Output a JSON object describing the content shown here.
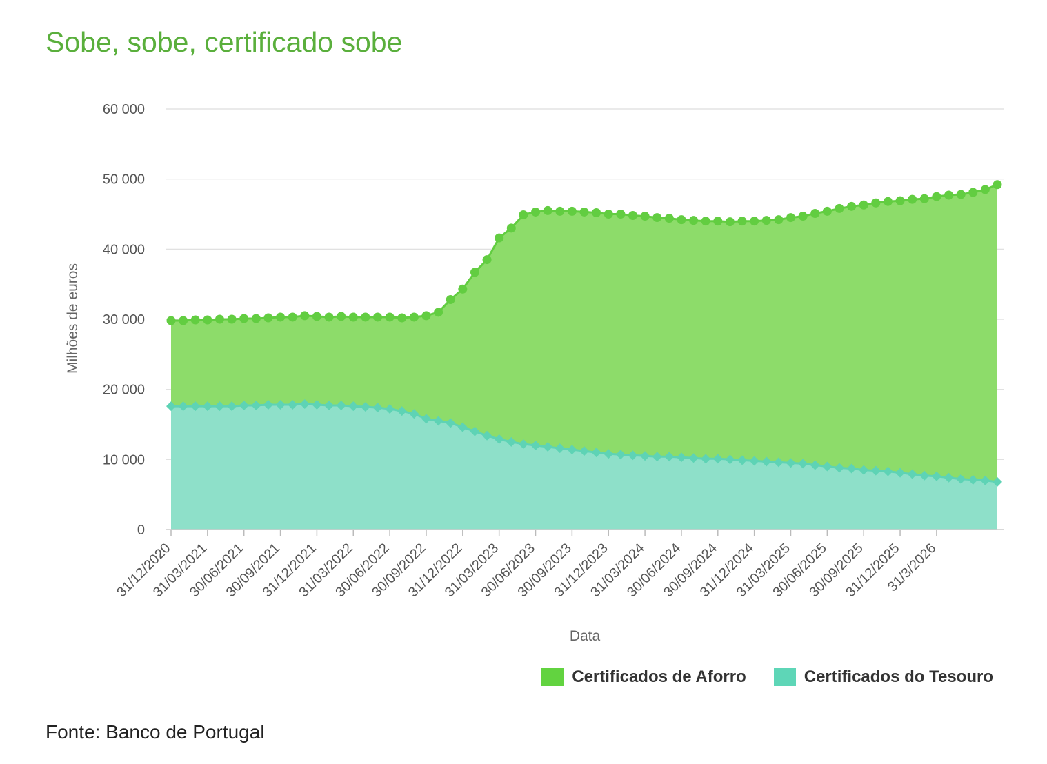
{
  "title": "Sobe, sobe, certificado sobe",
  "source": "Fonte: Banco de Portugal",
  "colors": {
    "title": "#5aaf3c",
    "aforro_area": "#8ddc6a",
    "aforro_line": "#62cd41",
    "tesouro_area": "#8ee0c9",
    "tesouro_line": "#5ed3b5",
    "grid": "#dddddd"
  },
  "legend": [
    {
      "label": "Certificados de Aforro",
      "color": "#62d340"
    },
    {
      "label": "Certificados do Tesouro",
      "color": "#5ed6b7"
    }
  ],
  "chart_data": {
    "type": "area",
    "stacked": true,
    "title": "Sobe, sobe, certificado sobe",
    "xlabel": "Data",
    "ylabel": "Milhões de euros",
    "ylim": [
      0,
      60000
    ],
    "yticks": [
      0,
      10000,
      20000,
      30000,
      40000,
      50000,
      60000
    ],
    "ytick_labels": [
      "0",
      "10 000",
      "20 000",
      "30 000",
      "40 000",
      "50 000",
      "60 000"
    ],
    "xtick_labels": [
      "31/12/2020",
      "31/03/2021",
      "30/06/2021",
      "30/09/2021",
      "31/12/2021",
      "31/03/2022",
      "30/06/2022",
      "30/09/2022",
      "31/12/2022",
      "31/03/2023",
      "30/06/2023",
      "30/09/2023",
      "31/12/2023",
      "31/03/2024",
      "30/06/2024",
      "30/09/2024",
      "31/12/2024",
      "31/03/2025",
      "30/06/2025",
      "30/09/2025",
      "31/12/2025",
      "31/3/2026"
    ],
    "x_periods": "monthly, December 2020 to May 2026",
    "grid": true,
    "legend_position": "bottom-right",
    "series": [
      {
        "name": "Certificados de Aforro",
        "values": [
          12200,
          12200,
          12300,
          12300,
          12400,
          12400,
          12400,
          12400,
          12400,
          12500,
          12500,
          12600,
          12600,
          12600,
          12700,
          12700,
          12800,
          12900,
          13100,
          13300,
          13800,
          14700,
          15500,
          17600,
          19700,
          22700,
          25100,
          28700,
          30500,
          32700,
          33300,
          33700,
          33800,
          34000,
          34100,
          34200,
          34200,
          34300,
          34200,
          34200,
          34100,
          34000,
          33900,
          33900,
          33900,
          33900,
          33900,
          34100,
          34200,
          34400,
          34600,
          35000,
          35300,
          35900,
          36400,
          37000,
          37400,
          37800,
          38200,
          38500,
          38800,
          39200,
          39500,
          39900,
          40300,
          40600,
          41000,
          41500,
          42400
        ]
      },
      {
        "name": "Certificados do Tesouro",
        "values": [
          17600,
          17600,
          17600,
          17600,
          17600,
          17600,
          17700,
          17700,
          17800,
          17800,
          17800,
          17900,
          17800,
          17700,
          17700,
          17600,
          17500,
          17400,
          17200,
          16900,
          16500,
          15800,
          15500,
          15200,
          14600,
          14000,
          13400,
          12900,
          12500,
          12200,
          12000,
          11800,
          11600,
          11400,
          11200,
          11000,
          10800,
          10700,
          10600,
          10500,
          10400,
          10400,
          10300,
          10200,
          10100,
          10100,
          10000,
          9900,
          9800,
          9700,
          9600,
          9500,
          9400,
          9200,
          9000,
          8800,
          8700,
          8500,
          8400,
          8300,
          8100,
          7900,
          7700,
          7600,
          7400,
          7200,
          7100,
          7000,
          6800
        ]
      }
    ]
  }
}
